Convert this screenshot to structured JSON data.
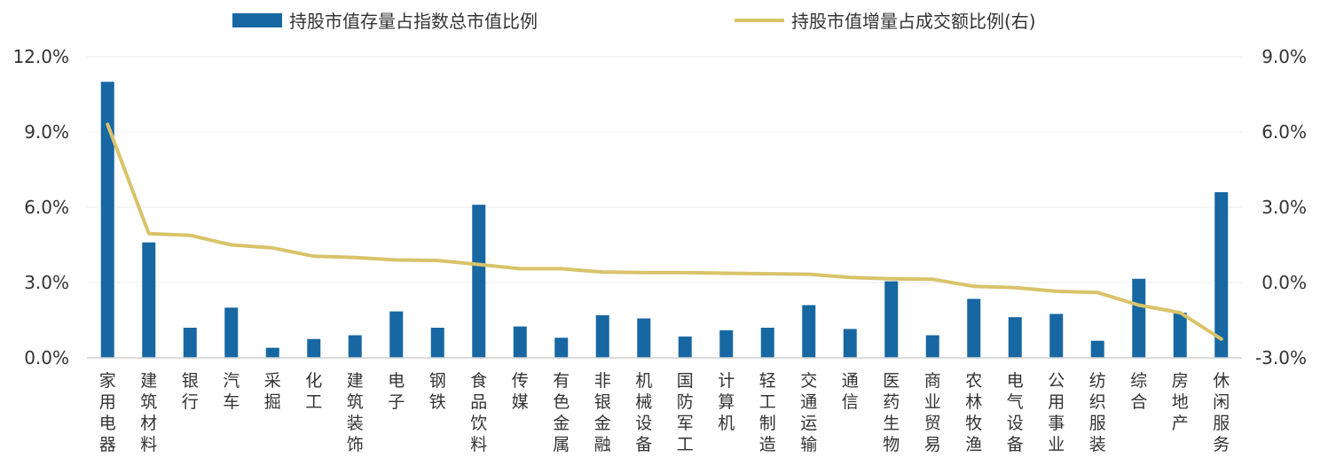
{
  "chart_data": {
    "type": "bar",
    "categories": [
      "家用电器",
      "建筑材料",
      "银行",
      "汽车",
      "采掘",
      "化工",
      "建筑装饰",
      "电子",
      "钢铁",
      "食品饮料",
      "传媒",
      "有色金属",
      "非银金融",
      "机械设备",
      "国防军工",
      "计算机",
      "轻工制造",
      "交通运输",
      "通信",
      "医药生物",
      "商业贸易",
      "农林牧渔",
      "电气设备",
      "公用事业",
      "纺织服装",
      "综合",
      "房地产",
      "休闲服务"
    ],
    "series": [
      {
        "name": "持股市值存量占指数总市值比例",
        "kind": "bar",
        "axis": "left",
        "color": "#1767a3",
        "values": [
          11.0,
          4.6,
          1.2,
          2.0,
          0.4,
          0.75,
          0.9,
          1.85,
          1.2,
          6.1,
          1.25,
          0.8,
          1.7,
          1.57,
          0.85,
          1.1,
          1.2,
          2.1,
          1.15,
          3.05,
          0.9,
          2.35,
          1.62,
          1.75,
          0.68,
          3.15,
          1.8,
          6.6
        ]
      },
      {
        "name": "持股市值增量占成交额比例(右)",
        "kind": "line",
        "axis": "right",
        "color": "#d9c36a",
        "values": [
          6.3,
          1.95,
          1.88,
          1.5,
          1.38,
          1.05,
          1.0,
          0.9,
          0.88,
          0.72,
          0.55,
          0.55,
          0.42,
          0.4,
          0.4,
          0.37,
          0.35,
          0.33,
          0.2,
          0.15,
          0.13,
          -0.15,
          -0.2,
          -0.35,
          -0.4,
          -0.9,
          -1.2,
          -2.25
        ]
      }
    ],
    "y_left": {
      "ticks": [
        "0.0%",
        "3.0%",
        "6.0%",
        "9.0%",
        "12.0%"
      ],
      "min": 0,
      "max": 12
    },
    "y_right": {
      "ticks": [
        "-3.0%",
        "0.0%",
        "3.0%",
        "6.0%",
        "9.0%"
      ],
      "min": -3,
      "max": 9
    },
    "legend": {
      "position": "top"
    },
    "grid": false
  }
}
